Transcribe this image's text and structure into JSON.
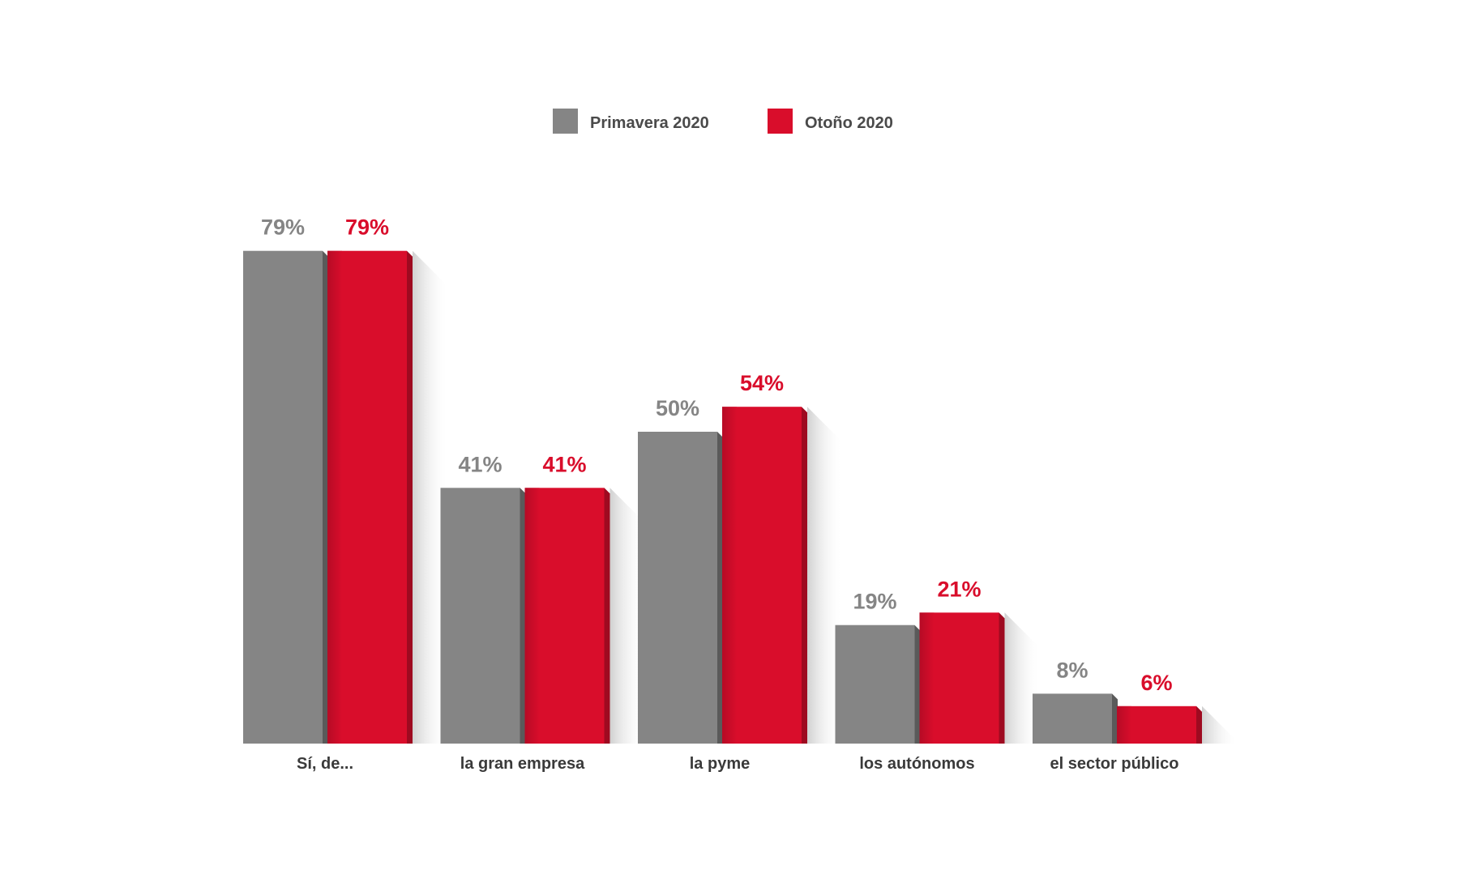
{
  "chart_data": {
    "type": "bar",
    "categories": [
      "Sí, de...",
      "la gran empresa",
      "la pyme",
      "los autónomos",
      "el sector público"
    ],
    "series": [
      {
        "name": "Primavera 2020",
        "values": [
          79,
          41,
          50,
          19,
          8
        ],
        "labels": [
          "79%",
          "41%",
          "50%",
          "19%",
          "8%"
        ],
        "color": "#858585"
      },
      {
        "name": "Otoño 2020",
        "values": [
          79,
          41,
          54,
          21,
          6
        ],
        "labels": [
          "79%",
          "41%",
          "54%",
          "21%",
          "6%"
        ],
        "color": "#d90d2b"
      }
    ],
    "unit": "%",
    "ylim": [
      0,
      100
    ],
    "grid": false,
    "legend_position": "top-center"
  }
}
